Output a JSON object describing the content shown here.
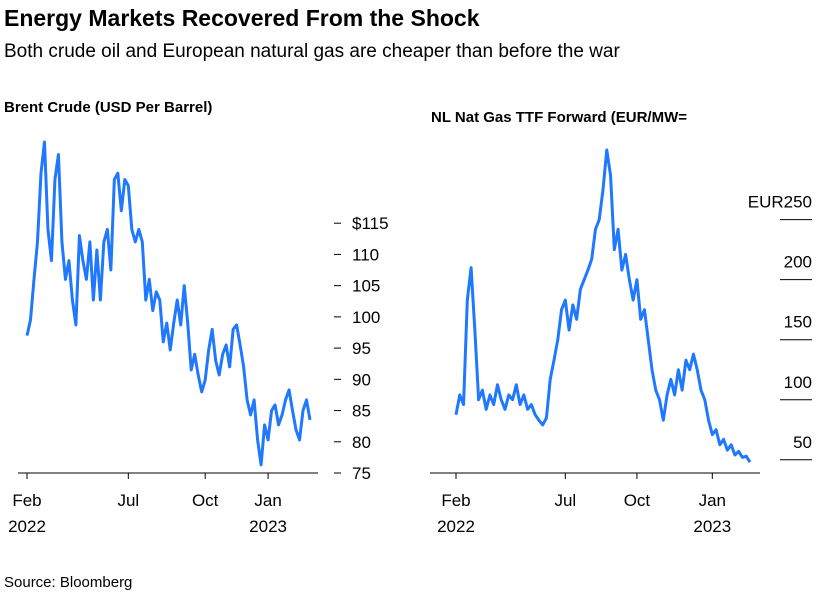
{
  "title": "Energy Markets Recovered From the Shock",
  "subtitle": "Both crude oil and European natural gas are cheaper than before the war",
  "source": "Source: Bloomberg",
  "chart_data": [
    {
      "type": "line",
      "title": "Brent Crude (USD Per Barrel)",
      "color": "#1f78ff",
      "categories": [
        "Feb",
        null,
        null,
        null,
        null,
        null,
        null,
        null,
        null,
        null,
        null,
        null,
        null,
        null,
        null,
        null,
        null,
        null,
        null,
        null,
        null,
        null,
        null,
        null,
        null,
        null,
        null,
        null,
        null,
        "Jul",
        null,
        null,
        null,
        null,
        null,
        null,
        null,
        null,
        null,
        null,
        null,
        null,
        null,
        null,
        null,
        null,
        null,
        null,
        null,
        null,
        null,
        "Oct",
        null,
        null,
        null,
        null,
        null,
        null,
        null,
        null,
        null,
        null,
        null,
        null,
        null,
        null,
        null,
        null,
        null,
        "Jan",
        null,
        null,
        null,
        null,
        null,
        null,
        null,
        null,
        null,
        null,
        null,
        null
      ],
      "category_years": [
        "2022",
        null,
        null,
        null,
        null,
        null,
        null,
        null,
        null,
        null,
        null,
        null,
        null,
        null,
        null,
        null,
        null,
        null,
        null,
        null,
        null,
        null,
        null,
        null,
        null,
        null,
        null,
        null,
        null,
        null,
        null,
        null,
        null,
        null,
        null,
        null,
        null,
        null,
        null,
        null,
        null,
        null,
        null,
        null,
        null,
        null,
        null,
        null,
        null,
        null,
        null,
        null,
        null,
        null,
        null,
        null,
        null,
        null,
        null,
        null,
        null,
        null,
        null,
        null,
        null,
        null,
        null,
        null,
        null,
        "2023",
        null,
        null,
        null,
        null,
        null,
        null,
        null,
        null,
        null,
        null,
        null,
        null
      ],
      "values": [
        97,
        99.5,
        106,
        112,
        123,
        128,
        114,
        109,
        122,
        126,
        112,
        106,
        109,
        102.7,
        98.7,
        113,
        109,
        106,
        112,
        102.7,
        110.7,
        102.7,
        112,
        114,
        107.5,
        122,
        123,
        117,
        122,
        121,
        114,
        112,
        114,
        112,
        102.7,
        106,
        101,
        104,
        102.7,
        96,
        99,
        94.7,
        99,
        102.7,
        98.7,
        105,
        99,
        91.5,
        94,
        90.7,
        88,
        89.9,
        94.7,
        98,
        93,
        90.7,
        94,
        95.5,
        92,
        98,
        98.7,
        95.5,
        92,
        86.7,
        84.3,
        86.7,
        80.3,
        76.3,
        82.7,
        80.3,
        85,
        85.9,
        82.7,
        84.3,
        86.7,
        88.3,
        85,
        81.9,
        80.3,
        85,
        86.7,
        83.5
      ],
      "ylim": [
        75,
        128
      ],
      "yticks": [
        75,
        80,
        85,
        90,
        95,
        100,
        105,
        110,
        {
          "value": 115,
          "label": "$115"
        }
      ]
    },
    {
      "type": "line",
      "title": "NL Nat Gas TTF Forward (EUR/MW=",
      "color": "#1f78ff",
      "categories": [
        "Feb",
        null,
        null,
        null,
        null,
        null,
        null,
        null,
        null,
        null,
        null,
        null,
        null,
        null,
        null,
        null,
        null,
        null,
        null,
        null,
        null,
        null,
        null,
        null,
        null,
        null,
        null,
        null,
        null,
        "Jul",
        null,
        null,
        null,
        null,
        null,
        null,
        null,
        null,
        null,
        null,
        null,
        null,
        null,
        null,
        null,
        null,
        null,
        null,
        "Oct",
        null,
        null,
        null,
        null,
        null,
        null,
        null,
        null,
        null,
        null,
        null,
        null,
        null,
        null,
        null,
        null,
        null,
        null,
        null,
        "Jan",
        null,
        null,
        null,
        null,
        null,
        null,
        null,
        null,
        null,
        null
      ],
      "category_years": [
        "2022",
        null,
        null,
        null,
        null,
        null,
        null,
        null,
        null,
        null,
        null,
        null,
        null,
        null,
        null,
        null,
        null,
        null,
        null,
        null,
        null,
        null,
        null,
        null,
        null,
        null,
        null,
        null,
        null,
        null,
        null,
        null,
        null,
        null,
        null,
        null,
        null,
        null,
        null,
        null,
        null,
        null,
        null,
        null,
        null,
        null,
        null,
        null,
        null,
        null,
        null,
        null,
        null,
        null,
        null,
        null,
        null,
        null,
        null,
        null,
        null,
        null,
        null,
        null,
        null,
        null,
        null,
        null,
        "2023",
        null,
        null,
        null,
        null,
        null,
        null,
        null,
        null,
        null,
        null
      ],
      "values": [
        87.5,
        104,
        96,
        183,
        210,
        158,
        100,
        108,
        92,
        104,
        96,
        112.5,
        100,
        92,
        104,
        100,
        112.5,
        96,
        104,
        92,
        96,
        87.5,
        83,
        79,
        85,
        117,
        133,
        150,
        175,
        183,
        158,
        179,
        167,
        192,
        200,
        208,
        217,
        242,
        250,
        275,
        308,
        287,
        225,
        242,
        208,
        221,
        200,
        183,
        200,
        167,
        175,
        150,
        125,
        108,
        100,
        83,
        104,
        117,
        104,
        125,
        108,
        133,
        125,
        138,
        125,
        108,
        100,
        83,
        71,
        75,
        62.5,
        67,
        58,
        62.5,
        54,
        57,
        52,
        53,
        48
      ],
      "ylim": [
        39,
        308
      ],
      "yticks": [
        50,
        100,
        150,
        200,
        {
          "value": 250,
          "label": "EUR250"
        }
      ]
    }
  ]
}
